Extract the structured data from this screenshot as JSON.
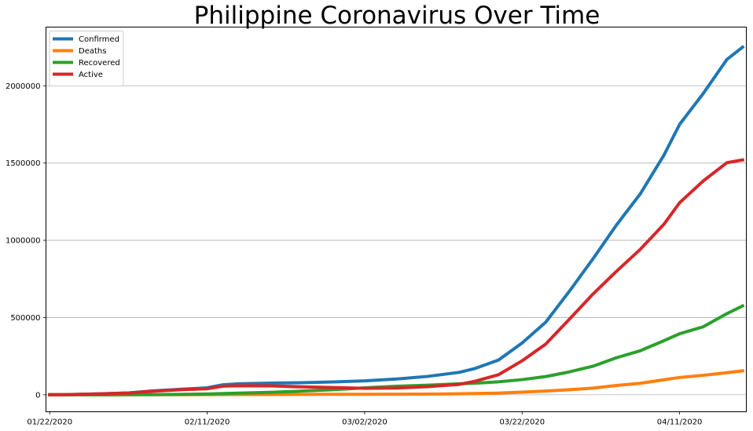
{
  "chart_data": {
    "type": "line",
    "title": "Philippine Coronavirus Over Time",
    "xlabel": "",
    "ylabel": "",
    "x": [
      "01/22/2020",
      "01/24/2020",
      "01/28/2020",
      "02/01/2020",
      "02/04/2020",
      "02/08/2020",
      "02/11/2020",
      "02/13/2020",
      "02/15/2020",
      "02/19/2020",
      "02/23/2020",
      "02/27/2020",
      "03/02/2020",
      "03/06/2020",
      "03/10/2020",
      "03/14/2020",
      "03/16/2020",
      "03/19/2020",
      "03/22/2020",
      "03/25/2020",
      "03/28/2020",
      "03/31/2020",
      "04/03/2020",
      "04/06/2020",
      "04/09/2020",
      "04/11/2020",
      "04/14/2020",
      "04/17/2020",
      "04/19/2020"
    ],
    "xticks": [
      "01/22/2020",
      "02/11/2020",
      "03/02/2020",
      "03/22/2020",
      "04/11/2020"
    ],
    "yticks": [
      0,
      500000,
      1000000,
      1500000,
      2000000
    ],
    "ylim": [
      -110000,
      2380000
    ],
    "grid": "y",
    "legend_position": "upper left",
    "series": [
      {
        "name": "Confirmed",
        "color": "#1f77b4",
        "values": [
          555,
          900,
          5600,
          12000,
          24500,
          37000,
          45000,
          65000,
          71000,
          75500,
          78000,
          83000,
          90000,
          102000,
          119000,
          145000,
          170000,
          225000,
          335000,
          470000,
          670000,
          880000,
          1100000,
          1300000,
          1550000,
          1750000,
          1950000,
          2170000,
          2250000
        ]
      },
      {
        "name": "Deaths",
        "color": "#ff7f0e",
        "values": [
          17,
          26,
          130,
          260,
          490,
          810,
          1100,
          1400,
          1600,
          2100,
          2600,
          2800,
          3100,
          3500,
          4300,
          6500,
          7900,
          11000,
          17000,
          24000,
          33000,
          43000,
          60000,
          74000,
          97000,
          112000,
          126000,
          143000,
          155000
        ]
      },
      {
        "name": "Recovered",
        "color": "#2ca02c",
        "values": [
          28,
          36,
          100,
          300,
          1000,
          2800,
          5000,
          8000,
          11000,
          16000,
          24000,
          33000,
          45000,
          55000,
          62000,
          71000,
          75000,
          84000,
          98000,
          118000,
          148000,
          185000,
          240000,
          285000,
          350000,
          395000,
          440000,
          525000,
          575000
        ]
      },
      {
        "name": "Active",
        "color": "#d62728",
        "values": [
          510,
          838,
          5370,
          11440,
          23010,
          33390,
          38900,
          55600,
          58400,
          57400,
          51400,
          47200,
          41900,
          43500,
          52700,
          67500,
          87100,
          130000,
          220000,
          328000,
          489000,
          652000,
          800000,
          941000,
          1103000,
          1243000,
          1384000,
          1502000,
          1520000
        ]
      }
    ]
  }
}
